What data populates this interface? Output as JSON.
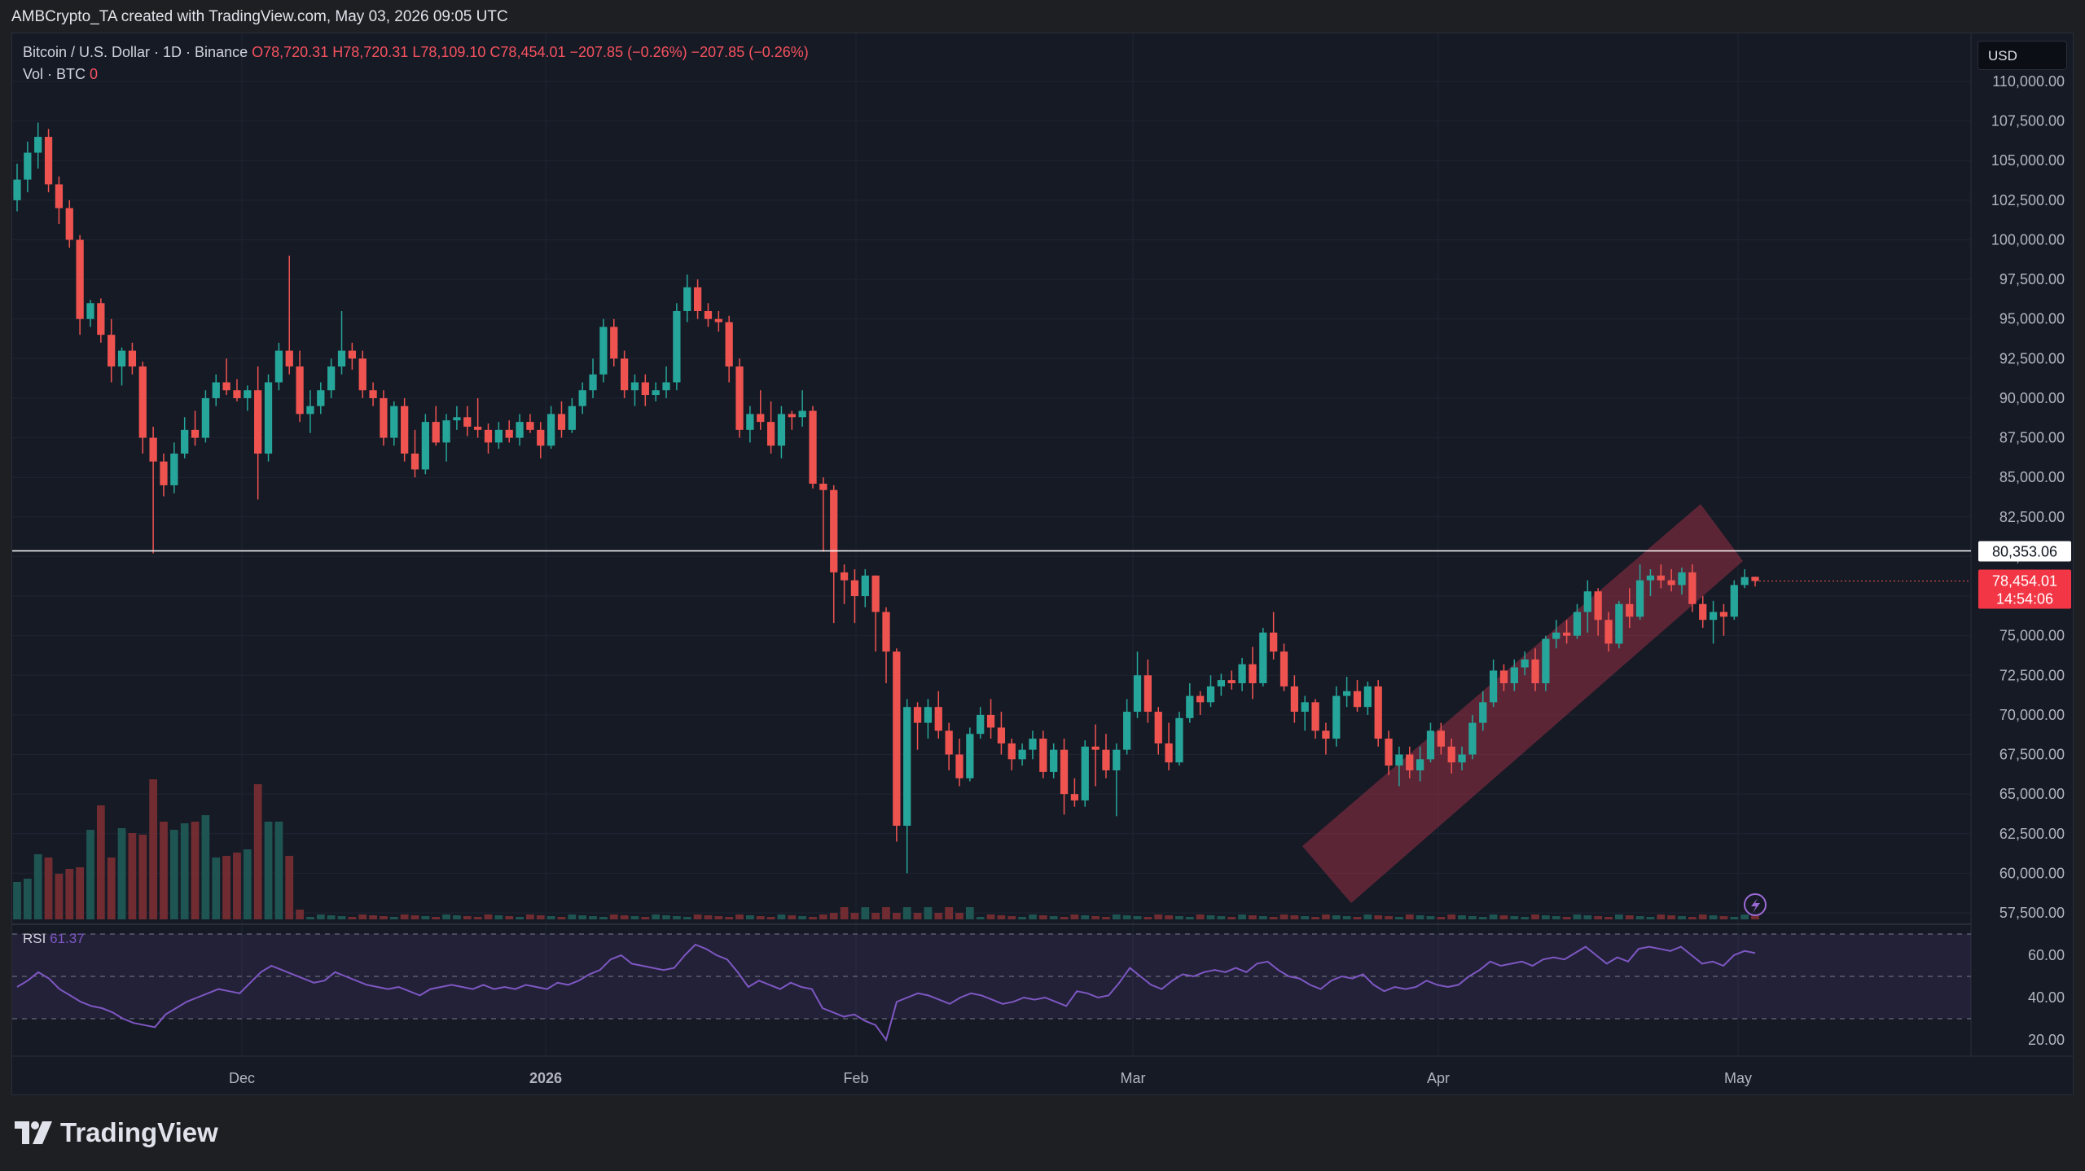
{
  "attribution": "AMBCrypto_TA created with TradingView.com, May 03, 2026 09:05 UTC",
  "legend": {
    "symbol": "Bitcoin / U.S. Dollar · 1D · Binance",
    "open": "O78,720.31",
    "high": "H78,720.31",
    "low": "L78,109.10",
    "close": "C78,454.01",
    "change": "−207.85 (−0.26%)",
    "change2": "−207.85 (−0.26%)",
    "vol_label": "Vol · BTC",
    "vol_value": "0"
  },
  "currency_button": "USD",
  "price_tags": {
    "resistance": "80,353.06",
    "last_price": "78,454.01",
    "countdown": "14:54:06"
  },
  "rsi": {
    "label": "RSI",
    "value": "61.37"
  },
  "footer": {
    "brand": "TradingView"
  },
  "colors": {
    "up": "#26a69a",
    "down": "#ef5350",
    "background": "#161a25",
    "rsi_line": "#7e57c2",
    "channel": "#b2324b"
  },
  "chart_data": {
    "type": "candlestick",
    "price_axis": {
      "min": 57500,
      "max": 110000,
      "ticks": [
        "110,000.00",
        "107,500.00",
        "105,000.00",
        "102,500.00",
        "100,000.00",
        "97,500.00",
        "95,000.00",
        "92,500.00",
        "90,000.00",
        "87,500.00",
        "85,000.00",
        "82,500.00",
        "80,000.00",
        "77,500.00",
        "75,000.00",
        "72,500.00",
        "70,000.00",
        "67,500.00",
        "65,000.00",
        "62,500.00",
        "60,000.00",
        "57,500.00"
      ]
    },
    "rsi_axis": {
      "ticks": [
        "60.00",
        "40.00",
        "20.00"
      ],
      "bands": [
        70,
        50,
        30
      ]
    },
    "time_axis": [
      "Dec",
      "2026",
      "Feb",
      "Mar",
      "Apr",
      "May"
    ],
    "resistance_level": 80353.06,
    "last_close": 78454.01,
    "channel": {
      "bottom_start": [
        62000,
        0.0
      ],
      "upper": "ascending"
    },
    "candles_ohlc": [
      [
        102500,
        104800,
        101800,
        103800
      ],
      [
        103800,
        106200,
        103000,
        105500
      ],
      [
        105500,
        107400,
        104500,
        106500
      ],
      [
        106500,
        107000,
        103000,
        103500
      ],
      [
        103500,
        104000,
        101000,
        102000
      ],
      [
        102000,
        102500,
        99500,
        100000
      ],
      [
        100000,
        100300,
        94000,
        95000
      ],
      [
        95000,
        96200,
        94500,
        96000
      ],
      [
        96000,
        96300,
        93500,
        94000
      ],
      [
        94000,
        95000,
        91000,
        92000
      ],
      [
        92000,
        93200,
        90800,
        93000
      ],
      [
        93000,
        93500,
        91500,
        92000
      ],
      [
        92000,
        92300,
        86500,
        87500
      ],
      [
        87500,
        88200,
        80200,
        86000
      ],
      [
        86000,
        86500,
        83800,
        84500
      ],
      [
        84500,
        87200,
        84000,
        86500
      ],
      [
        86500,
        88800,
        86200,
        88000
      ],
      [
        88000,
        89200,
        87000,
        87500
      ],
      [
        87500,
        90500,
        87200,
        90000
      ],
      [
        90000,
        91500,
        89500,
        91000
      ],
      [
        91000,
        92500,
        90200,
        90500
      ],
      [
        90500,
        91200,
        89800,
        90000
      ],
      [
        90000,
        90800,
        89200,
        90500
      ],
      [
        90500,
        92000,
        83600,
        86500
      ],
      [
        86500,
        91500,
        86000,
        91000
      ],
      [
        91000,
        93500,
        90500,
        93000
      ],
      [
        93000,
        99000,
        91500,
        92000
      ],
      [
        92000,
        93000,
        88500,
        89000
      ],
      [
        89000,
        90500,
        87800,
        89500
      ],
      [
        89500,
        91000,
        89000,
        90500
      ],
      [
        90500,
        92500,
        90000,
        92000
      ],
      [
        92000,
        95500,
        91500,
        93000
      ],
      [
        93000,
        93500,
        91800,
        92500
      ],
      [
        92500,
        93000,
        90000,
        90500
      ],
      [
        90500,
        91000,
        89500,
        90000
      ],
      [
        90000,
        90500,
        87000,
        87500
      ],
      [
        87500,
        89800,
        87000,
        89500
      ],
      [
        89500,
        90000,
        86000,
        86500
      ],
      [
        86500,
        88000,
        85000,
        85500
      ],
      [
        85500,
        89000,
        85200,
        88500
      ],
      [
        88500,
        89500,
        87000,
        87200
      ],
      [
        87200,
        89000,
        86000,
        88600
      ],
      [
        88600,
        89500,
        88000,
        88800
      ],
      [
        88800,
        89500,
        87600,
        88200
      ],
      [
        88200,
        90000,
        87500,
        88000
      ],
      [
        88000,
        88400,
        86500,
        87200
      ],
      [
        87200,
        88500,
        86800,
        88000
      ],
      [
        88000,
        88600,
        87200,
        87500
      ],
      [
        87500,
        89000,
        87000,
        88500
      ],
      [
        88500,
        89000,
        87800,
        88000
      ],
      [
        88000,
        88500,
        86200,
        87000
      ],
      [
        87000,
        89500,
        86800,
        89000
      ],
      [
        89000,
        89800,
        87500,
        88000
      ],
      [
        88000,
        90000,
        87800,
        89500
      ],
      [
        89500,
        91000,
        89000,
        90500
      ],
      [
        90500,
        92500,
        90000,
        91500
      ],
      [
        91500,
        95000,
        91000,
        94500
      ],
      [
        94500,
        95000,
        92000,
        92500
      ],
      [
        92500,
        93000,
        90000,
        90500
      ],
      [
        90500,
        91500,
        89500,
        91000
      ],
      [
        91000,
        91500,
        89500,
        90200
      ],
      [
        90200,
        91000,
        89800,
        90500
      ],
      [
        90500,
        92000,
        90000,
        91000
      ],
      [
        91000,
        96000,
        90500,
        95500
      ],
      [
        95500,
        97800,
        94800,
        97000
      ],
      [
        97000,
        97500,
        95000,
        95500
      ],
      [
        95500,
        96000,
        94500,
        95000
      ],
      [
        95000,
        95500,
        94200,
        94800
      ],
      [
        94800,
        95200,
        91000,
        92000
      ],
      [
        92000,
        92500,
        87500,
        88000
      ],
      [
        88000,
        89500,
        87200,
        89000
      ],
      [
        89000,
        90500,
        88000,
        88500
      ],
      [
        88500,
        89800,
        86500,
        87000
      ],
      [
        87000,
        89500,
        86200,
        89000
      ],
      [
        89000,
        89200,
        88000,
        88800
      ],
      [
        88800,
        90500,
        88200,
        89200
      ],
      [
        89200,
        89500,
        84300,
        84600
      ],
      [
        84600,
        85000,
        80300,
        84200
      ],
      [
        84200,
        84500,
        75800,
        79000
      ],
      [
        79000,
        79500,
        77000,
        78500
      ],
      [
        78500,
        79200,
        75800,
        77500
      ],
      [
        77500,
        79200,
        76800,
        78800
      ],
      [
        78800,
        78800,
        74000,
        76500
      ],
      [
        76500,
        76800,
        72000,
        74000
      ],
      [
        74000,
        74200,
        62000,
        63000
      ],
      [
        63000,
        71000,
        60000,
        70500
      ],
      [
        70500,
        70800,
        67800,
        69500
      ],
      [
        69500,
        71000,
        68500,
        70500
      ],
      [
        70500,
        71500,
        68500,
        69000
      ],
      [
        69000,
        69500,
        66500,
        67500
      ],
      [
        67500,
        68500,
        65500,
        66000
      ],
      [
        66000,
        69200,
        65800,
        68800
      ],
      [
        68800,
        70500,
        68500,
        70000
      ],
      [
        70000,
        71000,
        68500,
        69200
      ],
      [
        69200,
        70200,
        67500,
        68200
      ],
      [
        68200,
        68500,
        66500,
        67200
      ],
      [
        67200,
        68200,
        66800,
        67800
      ],
      [
        67800,
        69000,
        67200,
        68500
      ],
      [
        68500,
        69000,
        66000,
        66400
      ],
      [
        66400,
        68200,
        66000,
        67800
      ],
      [
        67800,
        68500,
        63700,
        65000
      ],
      [
        65000,
        66000,
        64200,
        64600
      ],
      [
        64600,
        68400,
        64200,
        68000
      ],
      [
        68000,
        69400,
        65500,
        67800
      ],
      [
        67800,
        68800,
        66000,
        66500
      ],
      [
        66500,
        68200,
        63600,
        67800
      ],
      [
        67800,
        71000,
        67500,
        70200
      ],
      [
        70200,
        74000,
        69800,
        72500
      ],
      [
        72500,
        73500,
        69500,
        70200
      ],
      [
        70200,
        70500,
        67500,
        68200
      ],
      [
        68200,
        69500,
        66500,
        67000
      ],
      [
        67000,
        70200,
        66800,
        69800
      ],
      [
        69800,
        72000,
        69500,
        71200
      ],
      [
        71200,
        71500,
        70000,
        70800
      ],
      [
        70800,
        72500,
        70500,
        71800
      ],
      [
        71800,
        72600,
        71200,
        72200
      ],
      [
        72200,
        72800,
        71600,
        72000
      ],
      [
        72000,
        73600,
        71500,
        73200
      ],
      [
        73200,
        74300,
        71000,
        72000
      ],
      [
        72000,
        75500,
        71800,
        75200
      ],
      [
        75200,
        76500,
        73500,
        74000
      ],
      [
        74000,
        74500,
        71500,
        71800
      ],
      [
        71800,
        72500,
        69500,
        70200
      ],
      [
        70200,
        71200,
        69000,
        70800
      ],
      [
        70800,
        71000,
        68500,
        69000
      ],
      [
        69000,
        69500,
        67500,
        68500
      ],
      [
        68500,
        71800,
        68000,
        71200
      ],
      [
        71200,
        72400,
        70500,
        71500
      ],
      [
        71500,
        72200,
        70200,
        70500
      ],
      [
        70500,
        72100,
        70000,
        71800
      ],
      [
        71800,
        72200,
        68000,
        68500
      ],
      [
        68500,
        69000,
        66200,
        66800
      ],
      [
        66800,
        68000,
        65500,
        67500
      ],
      [
        67500,
        68000,
        66000,
        66500
      ],
      [
        66500,
        68000,
        65800,
        67200
      ],
      [
        67200,
        69500,
        67000,
        69000
      ],
      [
        69000,
        69500,
        67500,
        68000
      ],
      [
        68000,
        68500,
        66300,
        67000
      ],
      [
        67000,
        68000,
        66500,
        67500
      ],
      [
        67500,
        70000,
        67200,
        69500
      ],
      [
        69500,
        71500,
        69000,
        70800
      ],
      [
        70800,
        73500,
        70500,
        72800
      ],
      [
        72800,
        73200,
        71500,
        72000
      ],
      [
        72000,
        73500,
        71500,
        73000
      ],
      [
        73000,
        74000,
        72500,
        73500
      ],
      [
        73500,
        74200,
        71500,
        72000
      ],
      [
        72000,
        75000,
        71500,
        74800
      ],
      [
        74800,
        76000,
        74200,
        75200
      ],
      [
        75200,
        76000,
        74500,
        75000
      ],
      [
        75000,
        77000,
        74800,
        76500
      ],
      [
        76500,
        78500,
        75200,
        77800
      ],
      [
        77800,
        78000,
        75000,
        76000
      ],
      [
        76000,
        76500,
        74000,
        74500
      ],
      [
        74500,
        77200,
        74200,
        77000
      ],
      [
        77000,
        78000,
        75500,
        76200
      ],
      [
        76200,
        79500,
        76000,
        78500
      ],
      [
        78500,
        79200,
        77500,
        78800
      ],
      [
        78800,
        79500,
        78000,
        78500
      ],
      [
        78500,
        79200,
        77800,
        78200
      ],
      [
        78200,
        79300,
        77600,
        79000
      ],
      [
        79000,
        79500,
        76500,
        77000
      ],
      [
        77000,
        77500,
        75500,
        76000
      ],
      [
        76000,
        77200,
        74500,
        76500
      ],
      [
        76500,
        77000,
        75000,
        76200
      ],
      [
        76200,
        78500,
        76000,
        78200
      ],
      [
        78200,
        79200,
        78000,
        78700
      ],
      [
        78720.31,
        78720.31,
        78109.1,
        78454.01
      ]
    ],
    "rsi_values": [
      45,
      48,
      52,
      49,
      44,
      41,
      38,
      36,
      35,
      33,
      30,
      28,
      27,
      26,
      32,
      35,
      38,
      40,
      42,
      44,
      43,
      42,
      47,
      52,
      55,
      53,
      51,
      49,
      47,
      48,
      52,
      50,
      48,
      46,
      45,
      44,
      45,
      43,
      41,
      44,
      45,
      46,
      45,
      44,
      46,
      44,
      45,
      44,
      46,
      45,
      44,
      47,
      46,
      48,
      51,
      53,
      58,
      60,
      56,
      55,
      54,
      53,
      54,
      60,
      65,
      63,
      60,
      58,
      52,
      45,
      48,
      46,
      44,
      47,
      45,
      44,
      35,
      33,
      31,
      32,
      29,
      27,
      20,
      38,
      40,
      42,
      41,
      39,
      37,
      40,
      42,
      41,
      39,
      37,
      38,
      40,
      39,
      40,
      38,
      36,
      43,
      42,
      40,
      41,
      47,
      54,
      50,
      46,
      44,
      48,
      51,
      50,
      52,
      53,
      52,
      54,
      52,
      56,
      57,
      53,
      50,
      49,
      46,
      44,
      48,
      50,
      49,
      51,
      46,
      43,
      45,
      44,
      45,
      48,
      46,
      45,
      46,
      50,
      53,
      57,
      55,
      56,
      57,
      55,
      58,
      59,
      58,
      61,
      64,
      60,
      56,
      59,
      57,
      63,
      64,
      63,
      62,
      64,
      60,
      56,
      57,
      55,
      60,
      62,
      61
    ]
  }
}
